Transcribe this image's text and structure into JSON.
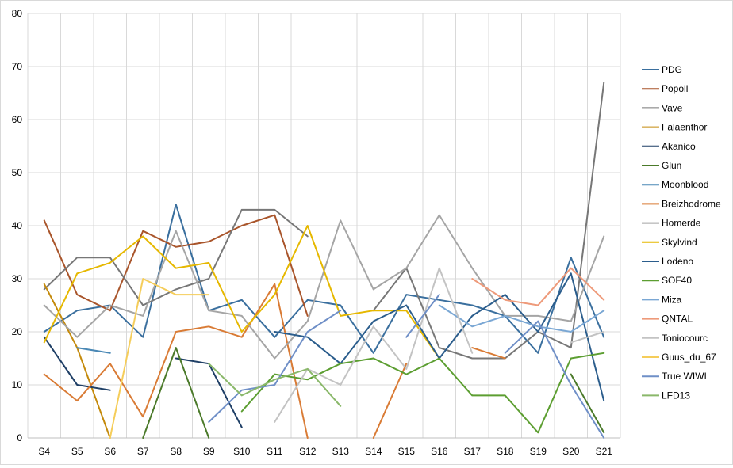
{
  "chart_data": {
    "type": "line",
    "title": "",
    "xlabel": "",
    "ylabel": "",
    "ylim": [
      0,
      80
    ],
    "yticks": [
      "0",
      "10",
      "20",
      "30",
      "40",
      "50",
      "60",
      "70",
      "80"
    ],
    "grid": true,
    "legend_position": "right",
    "categories": [
      "S4",
      "S5",
      "S6",
      "S7",
      "S8",
      "S9",
      "S10",
      "S11",
      "S12",
      "S13",
      "S14",
      "S15",
      "S16",
      "S17",
      "S18",
      "S19",
      "S20",
      "S21"
    ],
    "series": [
      {
        "name": "PDG",
        "color": "#3a6f9e",
        "values": [
          20,
          24,
          25,
          19,
          44,
          24,
          26,
          19,
          26,
          25,
          16,
          27,
          26,
          25,
          23,
          16,
          34,
          19
        ]
      },
      {
        "name": "Popoll",
        "color": "#a9552b",
        "values": [
          41,
          27,
          24,
          39,
          36,
          37,
          40,
          42,
          23,
          null,
          null,
          null,
          null,
          null,
          null,
          null,
          null,
          null
        ]
      },
      {
        "name": "Vave",
        "color": "#777777",
        "values": [
          28,
          34,
          34,
          25,
          28,
          30,
          43,
          43,
          38,
          null,
          24,
          32,
          17,
          15,
          15,
          20,
          17,
          67
        ]
      },
      {
        "name": "Falaenthor",
        "color": "#c48a0c",
        "values": [
          29,
          17,
          0,
          null,
          null,
          null,
          null,
          null,
          null,
          null,
          null,
          null,
          null,
          null,
          null,
          null,
          null,
          null
        ]
      },
      {
        "name": "Akanico",
        "color": "#1f3f66",
        "values": [
          19,
          10,
          9,
          null,
          15,
          14,
          2,
          null,
          null,
          null,
          null,
          null,
          null,
          null,
          null,
          null,
          null,
          null
        ]
      },
      {
        "name": "Glun",
        "color": "#4b7a2a",
        "values": [
          null,
          null,
          null,
          0,
          17,
          0,
          null,
          null,
          null,
          null,
          null,
          null,
          null,
          null,
          null,
          null,
          12,
          1
        ]
      },
      {
        "name": "Moonblood",
        "color": "#4a88b5",
        "values": [
          null,
          17,
          16,
          null,
          null,
          null,
          null,
          null,
          null,
          null,
          null,
          null,
          null,
          null,
          null,
          null,
          null,
          null
        ]
      },
      {
        "name": "Breizhodrome",
        "color": "#d97b35",
        "values": [
          12,
          7,
          14,
          4,
          20,
          21,
          19,
          29,
          0,
          null,
          0,
          14,
          null,
          17,
          15,
          null,
          null,
          null
        ]
      },
      {
        "name": "Homerde",
        "color": "#a5a5a5",
        "values": [
          25,
          19,
          25,
          23,
          39,
          24,
          23,
          15,
          22,
          41,
          28,
          32,
          42,
          32,
          23,
          23,
          22,
          38
        ]
      },
      {
        "name": "Skylvind",
        "color": "#e6b800",
        "values": [
          18,
          31,
          33,
          38,
          32,
          33,
          20,
          27,
          40,
          23,
          24,
          24,
          15,
          null,
          null,
          null,
          null,
          null
        ]
      },
      {
        "name": "Lodeno",
        "color": "#2b5d8c",
        "values": [
          null,
          null,
          null,
          null,
          null,
          null,
          null,
          20,
          19,
          14,
          22,
          25,
          15,
          23,
          27,
          20,
          31,
          7
        ]
      },
      {
        "name": "SOF40",
        "color": "#5c9e31",
        "values": [
          null,
          null,
          null,
          null,
          null,
          null,
          5,
          12,
          11,
          14,
          15,
          12,
          15,
          8,
          8,
          1,
          15,
          16
        ]
      },
      {
        "name": "Miza",
        "color": "#7aa7d4",
        "values": [
          null,
          null,
          null,
          null,
          null,
          null,
          null,
          null,
          null,
          null,
          null,
          null,
          25,
          21,
          23,
          21,
          20,
          24
        ]
      },
      {
        "name": "QNTAL",
        "color": "#ee9a7a",
        "values": [
          null,
          null,
          null,
          null,
          null,
          null,
          null,
          null,
          null,
          null,
          null,
          null,
          null,
          30,
          26,
          25,
          32,
          26
        ]
      },
      {
        "name": "Toniocourc",
        "color": "#c3c3c3",
        "values": [
          null,
          null,
          null,
          null,
          null,
          null,
          null,
          3,
          13,
          10,
          21,
          13,
          32,
          16,
          null,
          null,
          18,
          20
        ]
      },
      {
        "name": "Guus_du_67",
        "color": "#f5cd5a",
        "values": [
          null,
          null,
          0,
          30,
          27,
          27,
          null,
          null,
          null,
          null,
          null,
          null,
          null,
          null,
          null,
          null,
          null,
          null
        ]
      },
      {
        "name": "True WIWI",
        "color": "#6f8fc7",
        "values": [
          null,
          null,
          null,
          null,
          null,
          3,
          9,
          10,
          20,
          24,
          null,
          19,
          27,
          null,
          16,
          22,
          10,
          0
        ]
      },
      {
        "name": "LFD13",
        "color": "#8ab86a",
        "values": [
          null,
          null,
          null,
          null,
          null,
          14,
          8,
          11,
          13,
          6,
          null,
          null,
          null,
          null,
          null,
          null,
          null,
          null
        ]
      }
    ]
  }
}
